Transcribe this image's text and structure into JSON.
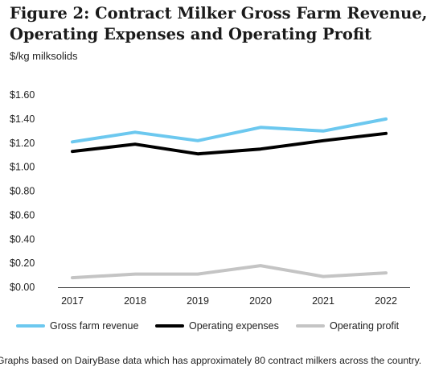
{
  "figure": {
    "title": "Figure 2: Contract Milker Gross Farm Revenue, Operating Expenses and Operating Profit",
    "unit_label": "$/kg milksolids",
    "footnote": "Graphs based on DairyBase data which has approximately 80 contract milkers across the country."
  },
  "chart_data": {
    "type": "line",
    "title": "Figure 2: Contract Milker Gross Farm Revenue, Operating Expenses and Operating Profit",
    "xlabel": "",
    "ylabel": "$/kg milksolids",
    "categories": [
      "2017",
      "2018",
      "2019",
      "2020",
      "2021",
      "2022"
    ],
    "ylim": [
      0,
      1.6
    ],
    "yticks": [
      0,
      0.2,
      0.4,
      0.6,
      0.8,
      1.0,
      1.2,
      1.4,
      1.6
    ],
    "ytick_labels": [
      "$0.00",
      "$0.20",
      "$0.40",
      "$0.60",
      "$0.80",
      "$1.00",
      "$1.20",
      "$1.40",
      "$1.60"
    ],
    "grid": false,
    "legend_position": "bottom",
    "series": [
      {
        "name": "Gross farm revenue",
        "color": "#6cc8ef",
        "values": [
          1.21,
          1.29,
          1.22,
          1.33,
          1.3,
          1.4
        ]
      },
      {
        "name": "Operating expenses",
        "color": "#000000",
        "values": [
          1.13,
          1.19,
          1.11,
          1.15,
          1.22,
          1.28
        ]
      },
      {
        "name": "Operating profit",
        "color": "#c4c4c4",
        "values": [
          0.08,
          0.11,
          0.11,
          0.18,
          0.09,
          0.12
        ]
      }
    ]
  }
}
